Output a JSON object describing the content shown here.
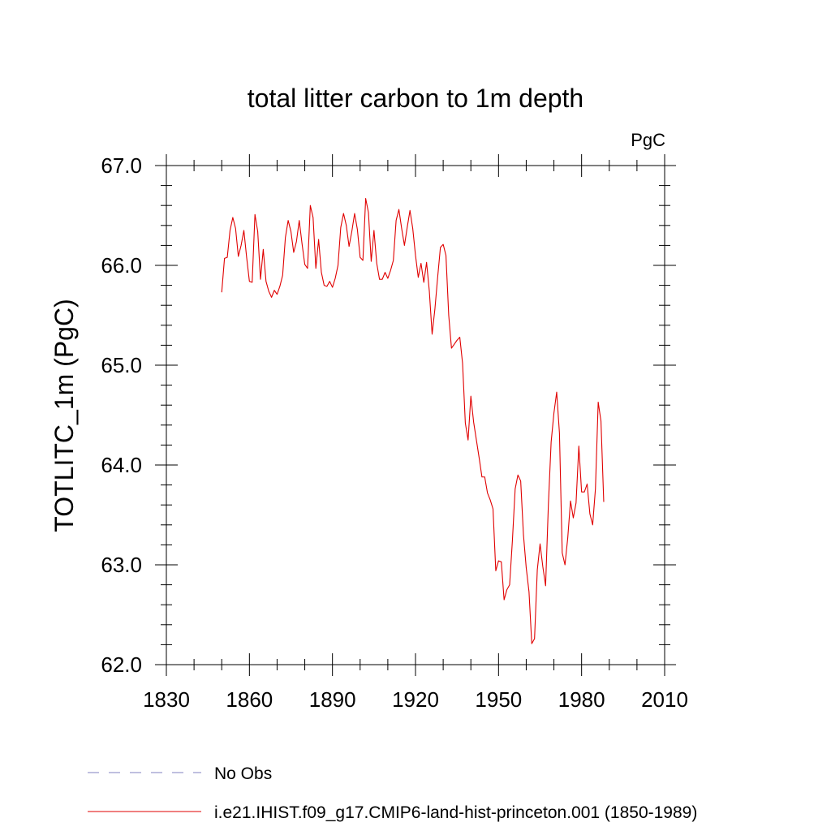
{
  "chart_data": {
    "type": "line",
    "title": "total litter carbon to 1m depth",
    "units_label": "PgC",
    "ylabel": "TOTLITC_1m  (PgC)",
    "xlabel": "",
    "xlim": [
      1830,
      2010
    ],
    "ylim": [
      62.0,
      67.0
    ],
    "x_ticks": [
      1830,
      1860,
      1890,
      1920,
      1950,
      1980,
      2010
    ],
    "x_tick_labels": [
      "1830",
      "1860",
      "1890",
      "1920",
      "1950",
      "1980",
      "2010"
    ],
    "x_minor_step": 10,
    "y_ticks": [
      62.0,
      63.0,
      64.0,
      65.0,
      66.0,
      67.0
    ],
    "y_tick_labels": [
      "62.0",
      "63.0",
      "64.0",
      "65.0",
      "66.0",
      "67.0"
    ],
    "y_minor_step": 0.2,
    "grid": false,
    "legend_position": "bottom-left",
    "legend": [
      {
        "label": "No Obs",
        "color": "#8080c0",
        "style": "dashed"
      },
      {
        "label": "i.e21.IHIST.f09_g17.CMIP6-land-hist-princeton.001 (1850-1989)",
        "color": "#e00000",
        "style": "solid"
      }
    ],
    "series": [
      {
        "name": "i.e21.IHIST.f09_g17.CMIP6-land-hist-princeton.001 (1850-1989)",
        "color": "#e00000",
        "x_start": 1850,
        "x_step": 1,
        "values": [
          65.73,
          66.07,
          66.08,
          66.35,
          66.48,
          66.37,
          66.09,
          66.2,
          66.35,
          66.08,
          65.84,
          65.83,
          66.51,
          66.34,
          65.86,
          66.16,
          65.84,
          65.74,
          65.68,
          65.75,
          65.71,
          65.79,
          65.9,
          66.28,
          66.45,
          66.34,
          66.13,
          66.24,
          66.45,
          66.22,
          66.01,
          65.97,
          66.6,
          66.48,
          65.97,
          66.26,
          65.93,
          65.8,
          65.79,
          65.84,
          65.78,
          65.87,
          66.0,
          66.38,
          66.52,
          66.4,
          66.19,
          66.34,
          66.52,
          66.36,
          66.08,
          66.05,
          66.67,
          66.53,
          66.04,
          66.35,
          66.02,
          65.86,
          65.86,
          65.93,
          65.87,
          65.95,
          66.05,
          66.45,
          66.56,
          66.37,
          66.2,
          66.38,
          66.55,
          66.37,
          66.1,
          65.88,
          66.02,
          65.83,
          66.03,
          65.74,
          65.31,
          65.56,
          65.88,
          66.18,
          66.21,
          66.1,
          65.5,
          65.17,
          65.21,
          65.25,
          65.28,
          65.02,
          64.42,
          64.25,
          64.69,
          64.43,
          64.25,
          64.07,
          63.88,
          63.88,
          63.72,
          63.65,
          63.56,
          62.94,
          63.04,
          63.03,
          62.65,
          62.75,
          62.8,
          63.24,
          63.76,
          63.9,
          63.84,
          63.3,
          62.97,
          62.73,
          62.21,
          62.26,
          62.95,
          63.21,
          62.98,
          62.79,
          63.6,
          64.23,
          64.52,
          64.73,
          64.32,
          63.12,
          63.0,
          63.27,
          63.64,
          63.47,
          63.62,
          64.19,
          63.73,
          63.73,
          63.81,
          63.51,
          63.4,
          63.76,
          64.63,
          64.44,
          63.63
        ]
      }
    ]
  }
}
